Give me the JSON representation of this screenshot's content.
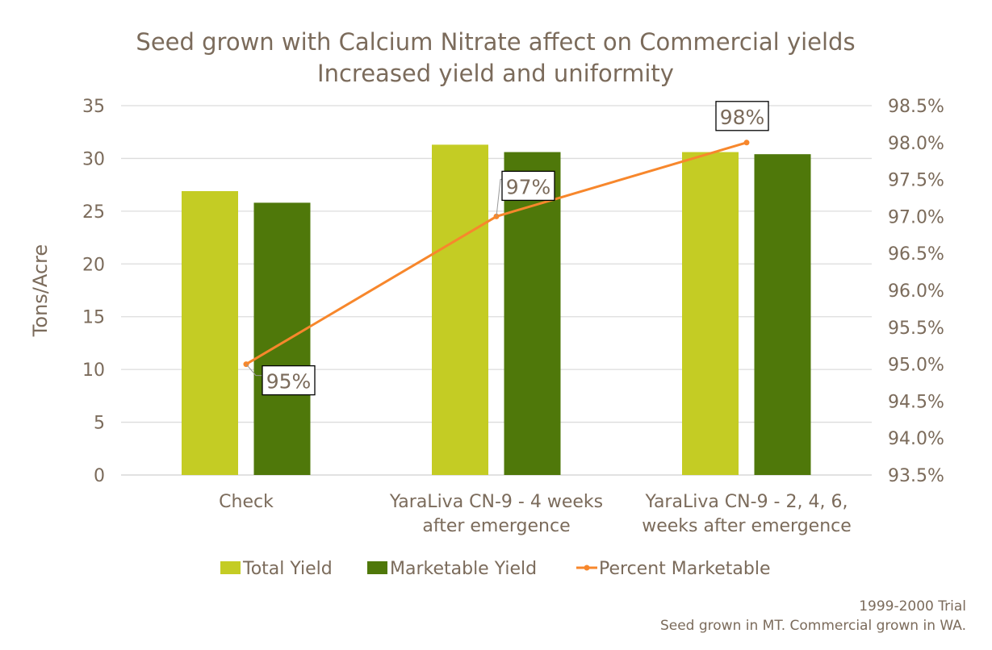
{
  "chart_data": {
    "type": "bar",
    "title": "Seed grown with Calcium Nitrate affect on Commercial yields",
    "subtitle": "Increased yield and uniformity",
    "ylabel": "Tons/Acre",
    "ylim": [
      0,
      35
    ],
    "yticks": [
      "0",
      "5",
      "10",
      "15",
      "20",
      "25",
      "30",
      "35"
    ],
    "y2lim": [
      93.5,
      98.5
    ],
    "y2ticks": [
      "93.5%",
      "94.0%",
      "94.5%",
      "95.0%",
      "95.5%",
      "96.0%",
      "96.5%",
      "97.0%",
      "97.5%",
      "98.0%",
      "98.5%"
    ],
    "grid": true,
    "legend_position": "bottom",
    "categories": [
      [
        "Check"
      ],
      [
        "YaraLiva CN-9 - 4 weeks",
        "after emergence"
      ],
      [
        "YaraLiva CN-9 - 2, 4, 6,",
        "weeks after emergence"
      ]
    ],
    "series": [
      {
        "name": "Total Yield",
        "kind": "bar",
        "axis": "left",
        "color": "#C4CC24",
        "values": [
          26.9,
          31.3,
          30.6
        ]
      },
      {
        "name": "Marketable Yield",
        "kind": "bar",
        "axis": "left",
        "color": "#4F780A",
        "values": [
          25.8,
          30.6,
          30.4
        ]
      },
      {
        "name": "Percent Marketable",
        "kind": "line",
        "axis": "right",
        "color": "#F7872C",
        "values": [
          95,
          97,
          98
        ],
        "labels": [
          "95%",
          "97%",
          "98%"
        ]
      }
    ],
    "footnote": [
      "1999-2000 Trial",
      "Seed grown in MT. Commercial grown in WA."
    ]
  }
}
